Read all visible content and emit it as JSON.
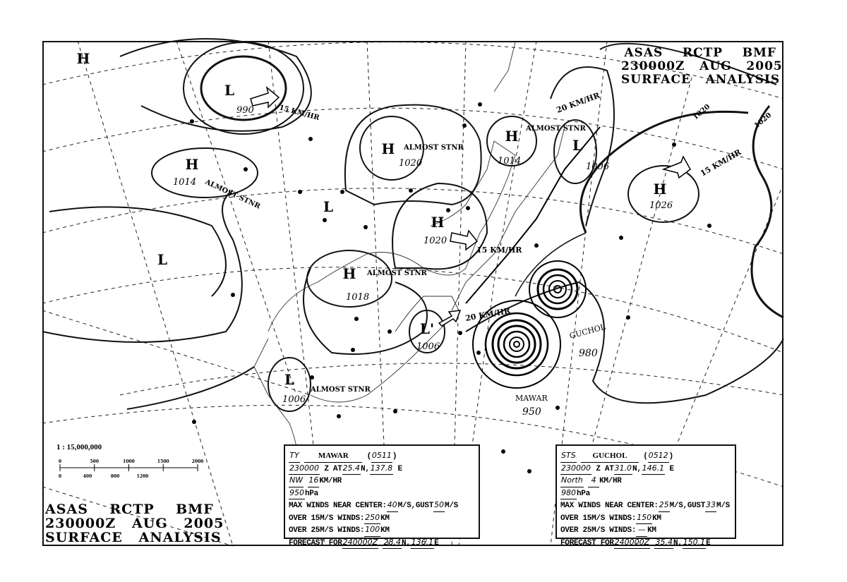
{
  "header": {
    "line1": "ASAS    RCTP    BMF",
    "line2": "230000Z   AUG   2005",
    "line3": "SURFACE   ANALYSIS"
  },
  "scale": {
    "ratio": "1 : 15,000,000",
    "upper_ticks": [
      "0",
      "500",
      "1000",
      "1500",
      "2000"
    ],
    "lower_ticks": [
      "0",
      "400",
      "800",
      "1200"
    ]
  },
  "systems": [
    {
      "type": "L",
      "label": "L",
      "pressure": "990"
    },
    {
      "type": "H",
      "label": "H",
      "pressure": "1014"
    },
    {
      "type": "H",
      "label": "H",
      "pressure": "1020"
    },
    {
      "type": "H",
      "label": "H",
      "pressure": "1020"
    },
    {
      "type": "H",
      "label": "H",
      "pressure": "1014"
    },
    {
      "type": "L",
      "label": "L",
      "pressure": "1006"
    },
    {
      "type": "H",
      "label": "H",
      "pressure": "1026"
    },
    {
      "type": "L",
      "label": "L",
      "pressure": ""
    },
    {
      "type": "L",
      "label": "L",
      "pressure": ""
    },
    {
      "type": "H",
      "label": "H",
      "pressure": "1018"
    },
    {
      "type": "L",
      "label": "L'",
      "pressure": "1006"
    },
    {
      "type": "L",
      "label": "L",
      "pressure": "1006"
    },
    {
      "type": "H",
      "label": "H",
      "pressure": ""
    }
  ],
  "annotations": {
    "almost_stnr": "ALMOST STNR",
    "speed_15": "15 KM/HR",
    "speed_20": "20 KM/HR",
    "isobar_1020": "1020"
  },
  "typhoons": [
    {
      "name": "MAWAR",
      "pressure": "950"
    },
    {
      "name": "GUCHOL",
      "pressure": "980"
    }
  ],
  "box_mawar": {
    "category": "TY",
    "name": "MAWAR",
    "number": "0511",
    "time": "230000",
    "lat": "25.4",
    "lon": "137.8",
    "direction": "NW",
    "speed": "16",
    "pressure": "950",
    "max_wind": "40",
    "gust": "50",
    "r15": "250",
    "r25": "100",
    "fc_time": "240000Z",
    "fc_lat": "28.4",
    "fc_lon": "136.1"
  },
  "box_guchol": {
    "category": "STS",
    "name": "GUCHOL",
    "number": "0512",
    "time": "230000",
    "lat": "31.0",
    "lon": "146.1",
    "direction": "North",
    "speed": "4",
    "pressure": "980",
    "max_wind": "25",
    "gust": "33",
    "r15": "150",
    "r25": "—",
    "fc_time": "240000Z",
    "fc_lat": "35.4",
    "fc_lon": "150.1"
  },
  "labels": {
    "z_at": "Z  AT",
    "n": "N,",
    "e": "E",
    "kmhr": "KM/HR",
    "hpa": "hPa",
    "max_winds": "MAX WINDS NEAR CENTER:",
    "ms_gust": "M/S,GUST",
    "ms": "M/S",
    "over15": "OVER 15M/S WINDS:",
    "over25": "OVER 25M/S WINDS:",
    "km": "KM",
    "forecast": "FORECAST FOR"
  }
}
